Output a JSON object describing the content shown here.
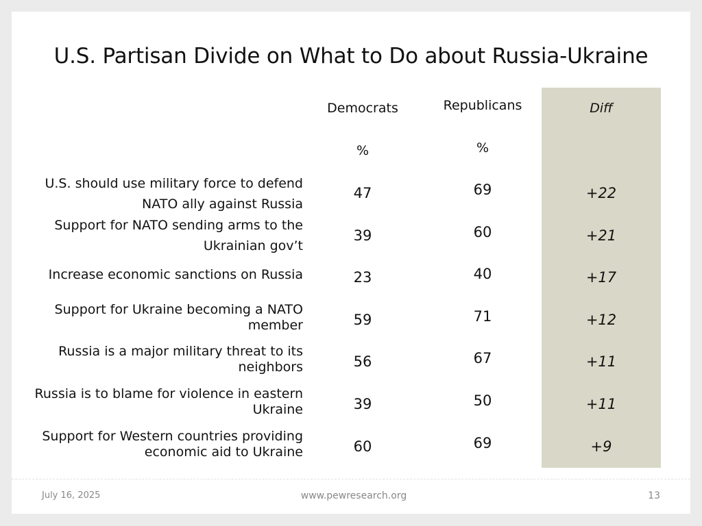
{
  "title": "U.S. Partisan Divide on What to Do about Russia-Ukraine",
  "columns": {
    "democrats": "Democrats",
    "republicans": "Republicans",
    "diff": "Diff",
    "democrats_unit": "%",
    "republicans_unit": "%"
  },
  "rows": [
    {
      "label": "U.S. should use military force to defend NATO ally against Russia",
      "democrats": "47",
      "republicans": "69",
      "diff": "+22"
    },
    {
      "label": "Support for NATO sending arms to the Ukrainian gov’t",
      "democrats": "39",
      "republicans": "60",
      "diff": "+21"
    },
    {
      "label": "Increase economic sanctions on Russia",
      "democrats": "23",
      "republicans": "40",
      "diff": "+17"
    },
    {
      "label": "Support for Ukraine becoming a NATO member",
      "democrats": "59",
      "republicans": "71",
      "diff": "+12"
    },
    {
      "label": "Russia is a major military threat to its neighbors",
      "democrats": "56",
      "republicans": "67",
      "diff": "+11"
    },
    {
      "label": "Russia is to blame for violence in eastern Ukraine",
      "democrats": "39",
      "republicans": "50",
      "diff": "+11"
    },
    {
      "label": "Support for Western countries providing economic aid to Ukraine",
      "democrats": "60",
      "republicans": "69",
      "diff": "+9"
    }
  ],
  "footer": {
    "date": "July 16, 2025",
    "site": "www.pewresearch.org",
    "page": "13"
  },
  "colors": {
    "diff_band": "#d9d7c7",
    "background": "#ebebeb",
    "slide": "#ffffff",
    "footer_text": "#888888"
  }
}
